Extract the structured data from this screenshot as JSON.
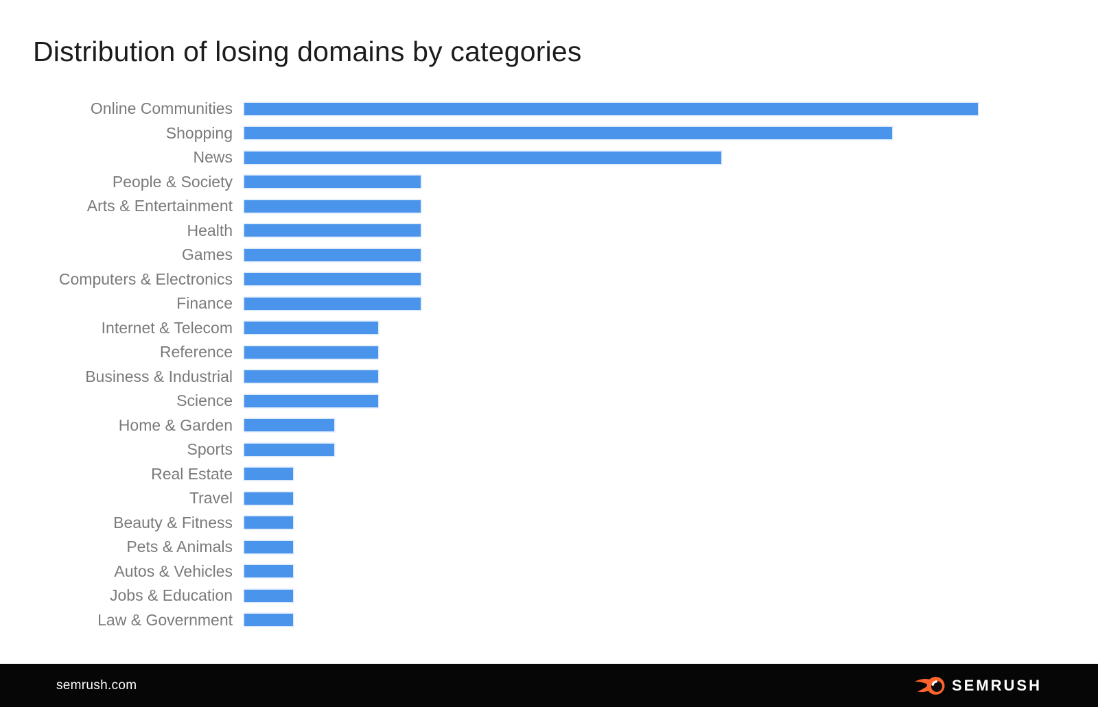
{
  "header": {
    "title": "Distribution of losing domains by categories"
  },
  "chart_data": {
    "type": "bar",
    "orientation": "horizontal",
    "title": "Distribution of losing domains by categories",
    "categories": [
      "Online Communities",
      "Shopping",
      "News",
      "People & Society",
      "Arts & Entertainment",
      "Health",
      "Games",
      "Computers & Electronics",
      "Finance",
      "Internet & Telecom",
      "Reference",
      "Business & Industrial",
      "Science",
      "Home & Garden",
      "Sports",
      "Real Estate",
      "Travel",
      "Beauty & Fitness",
      "Pets & Animals",
      "Autos & Vehicles",
      "Jobs & Education",
      "Law & Government"
    ],
    "values": [
      100,
      88.3,
      65,
      24,
      24,
      24,
      24,
      24,
      24,
      18.2,
      18.2,
      18.2,
      18.2,
      12.3,
      12.3,
      6.6,
      6.6,
      6.6,
      6.6,
      6.6,
      6.6,
      6.6
    ],
    "value_note": "No numeric axis shown in chart; values estimated as percent of longest bar",
    "xlabel": "",
    "ylabel": "",
    "xlim": [
      0,
      100
    ],
    "grid": false,
    "legend": false,
    "bar_color": "#4b94ec",
    "label_color": "#7a7a7a"
  },
  "footer": {
    "site": "semrush.com",
    "brand": "SEMRUSH",
    "brand_color": "#ff642d",
    "background": "#060606"
  }
}
